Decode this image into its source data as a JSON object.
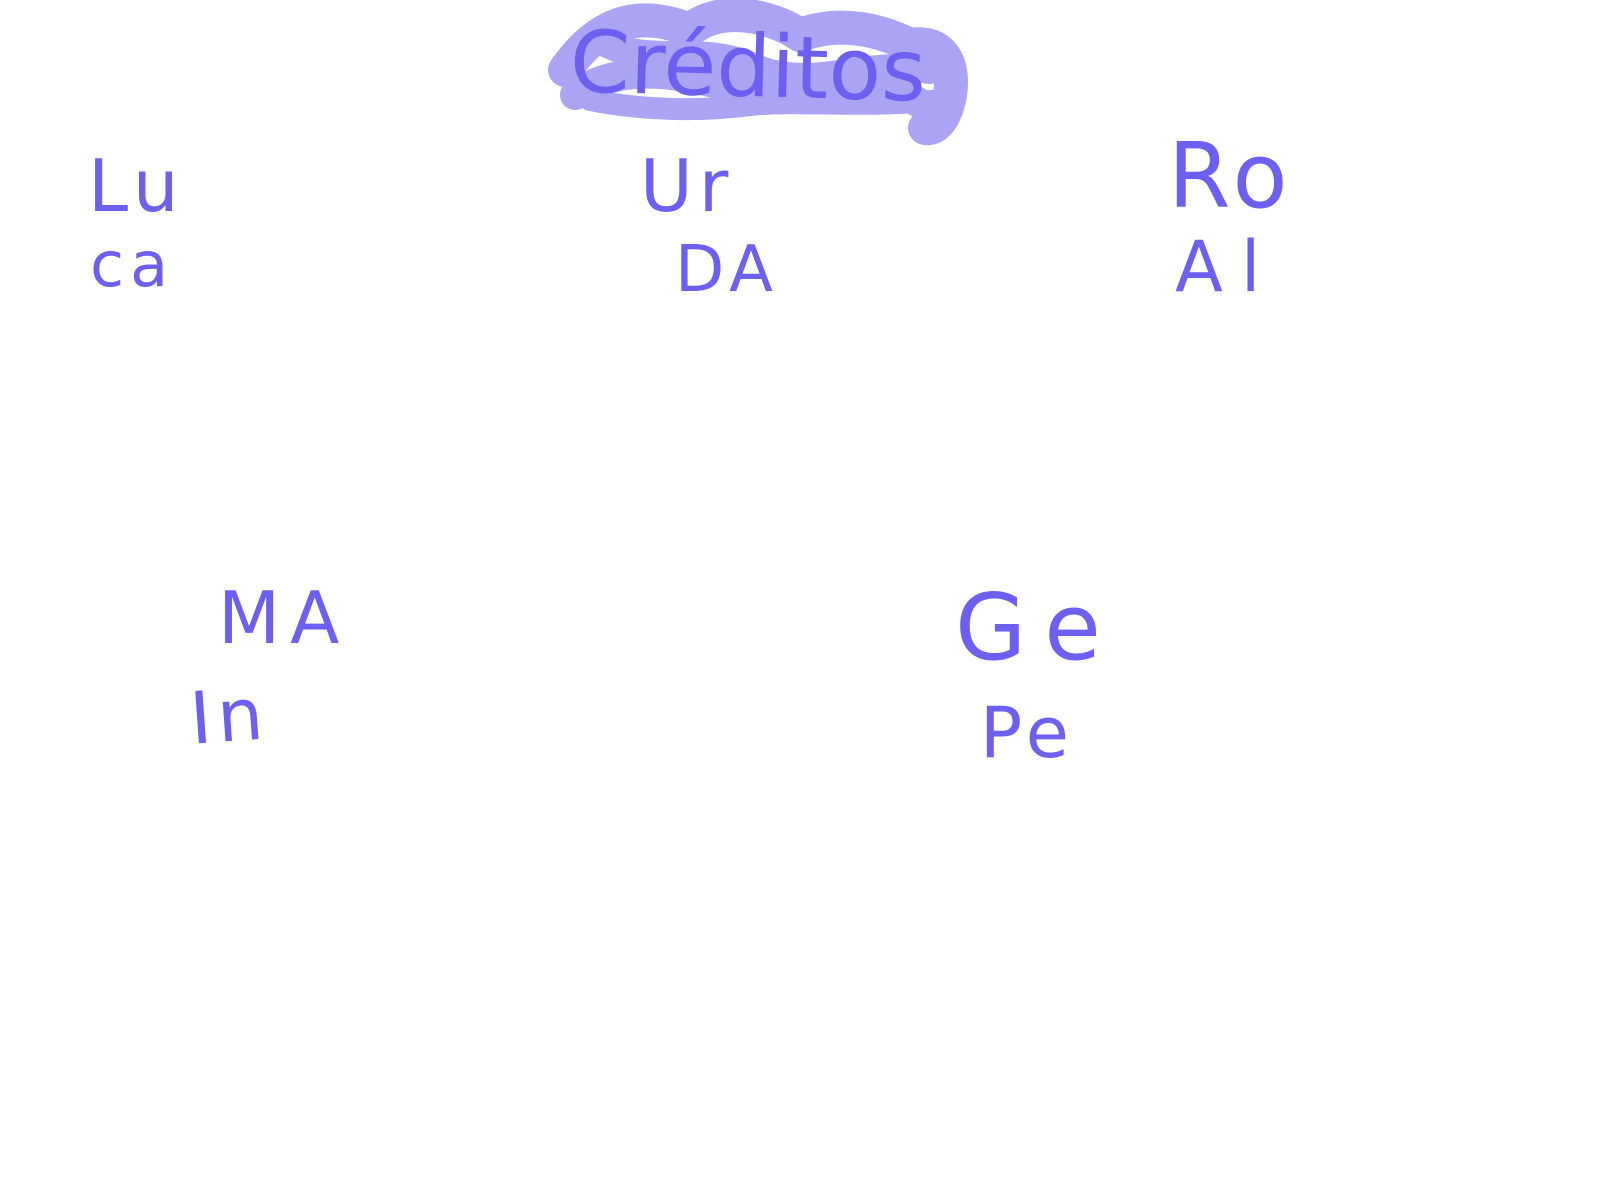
{
  "title": "Créditos",
  "highlight_color": "#8f86f2",
  "ink_color": "#6d5ff0",
  "groups": [
    {
      "line1": "Lu",
      "line2": "ca"
    },
    {
      "line1": "Ur",
      "line2": "DA"
    },
    {
      "line1": "Ro",
      "line2": "Al"
    },
    {
      "line1": "MA",
      "line2": "In"
    },
    {
      "line1": "Ge",
      "line2": "Pe"
    }
  ]
}
